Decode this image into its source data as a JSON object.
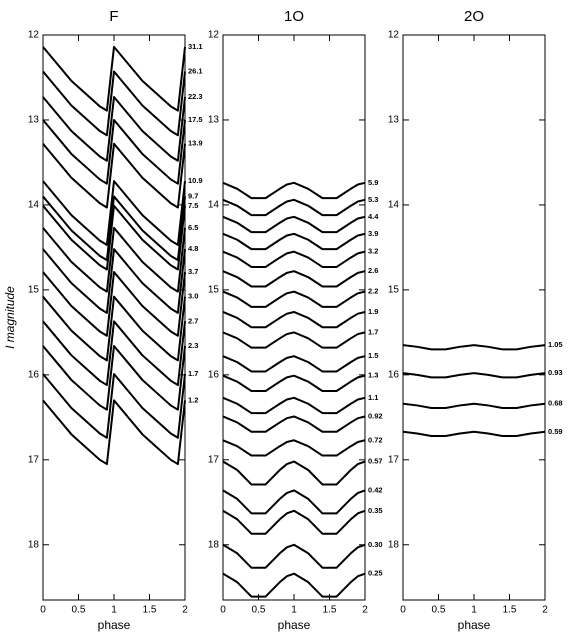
{
  "chart_data": [
    {
      "type": "line",
      "title": "F",
      "xlabel": "phase",
      "ylabel": "I  magnitude",
      "x": [
        0,
        0.2,
        0.4,
        0.6,
        0.8,
        0.9,
        1,
        1.2,
        1.4,
        1.6,
        1.8,
        1.9,
        2
      ],
      "xlim": [
        0,
        2
      ],
      "xticks": [
        0,
        0.5,
        1,
        1.5,
        2
      ],
      "ylim": [
        12,
        18.65
      ],
      "yticks": [
        12,
        13,
        14,
        15,
        16,
        17,
        18
      ],
      "y_inverted": true,
      "series": [
        {
          "name": "31.1",
          "color": "#000000",
          "values": [
            12.14,
            12.34,
            12.54,
            12.69,
            12.84,
            12.89,
            12.14,
            12.34,
            12.54,
            12.69,
            12.84,
            12.89,
            12.14
          ]
        },
        {
          "name": "26.1",
          "color": "#000000",
          "values": [
            12.43,
            12.63,
            12.83,
            12.98,
            13.13,
            13.18,
            12.43,
            12.63,
            12.83,
            12.98,
            13.13,
            13.18,
            12.43
          ]
        },
        {
          "name": "22.3",
          "color": "#000000",
          "values": [
            12.73,
            12.93,
            13.13,
            13.28,
            13.43,
            13.48,
            12.73,
            12.93,
            13.13,
            13.28,
            13.43,
            13.48,
            12.73
          ]
        },
        {
          "name": "17.5",
          "color": "#000000",
          "values": [
            13.0,
            13.2,
            13.4,
            13.55,
            13.7,
            13.75,
            13.0,
            13.2,
            13.4,
            13.55,
            13.7,
            13.75,
            13.0
          ]
        },
        {
          "name": "13.9",
          "color": "#000000",
          "values": [
            13.28,
            13.48,
            13.68,
            13.83,
            13.98,
            14.03,
            13.28,
            13.48,
            13.68,
            13.83,
            13.98,
            14.03,
            13.28
          ]
        },
        {
          "name": "10.9",
          "color": "#000000",
          "values": [
            13.72,
            13.92,
            14.12,
            14.27,
            14.42,
            14.47,
            13.72,
            13.92,
            14.12,
            14.27,
            14.42,
            14.47,
            13.72
          ]
        },
        {
          "name": "9.7",
          "color": "#000000",
          "values": [
            13.9,
            14.1,
            14.3,
            14.45,
            14.6,
            14.65,
            13.9,
            14.1,
            14.3,
            14.45,
            14.6,
            14.65,
            13.9
          ]
        },
        {
          "name": "7.5",
          "color": "#000000",
          "values": [
            14.01,
            14.21,
            14.41,
            14.56,
            14.71,
            14.76,
            14.01,
            14.21,
            14.41,
            14.56,
            14.71,
            14.76,
            14.01
          ]
        },
        {
          "name": "6.5",
          "color": "#000000",
          "values": [
            14.27,
            14.47,
            14.67,
            14.82,
            14.97,
            15.02,
            14.27,
            14.47,
            14.67,
            14.82,
            14.97,
            15.02,
            14.27
          ]
        },
        {
          "name": "4.8",
          "color": "#000000",
          "values": [
            14.52,
            14.72,
            14.92,
            15.07,
            15.22,
            15.27,
            14.52,
            14.72,
            14.92,
            15.07,
            15.22,
            15.27,
            14.52
          ]
        },
        {
          "name": "3.7",
          "color": "#000000",
          "values": [
            14.79,
            14.99,
            15.19,
            15.34,
            15.49,
            15.54,
            14.79,
            14.99,
            15.19,
            15.34,
            15.49,
            15.54,
            14.79
          ]
        },
        {
          "name": "3.0",
          "color": "#000000",
          "values": [
            15.08,
            15.28,
            15.48,
            15.63,
            15.78,
            15.83,
            15.08,
            15.28,
            15.48,
            15.63,
            15.78,
            15.83,
            15.08
          ]
        },
        {
          "name": "2.7",
          "color": "#000000",
          "values": [
            15.37,
            15.57,
            15.77,
            15.92,
            16.07,
            16.12,
            15.37,
            15.57,
            15.77,
            15.92,
            16.07,
            16.12,
            15.37
          ]
        },
        {
          "name": "2.3",
          "color": "#000000",
          "values": [
            15.66,
            15.86,
            16.06,
            16.21,
            16.36,
            16.41,
            15.66,
            15.86,
            16.06,
            16.21,
            16.36,
            16.41,
            15.66
          ]
        },
        {
          "name": "1.7",
          "color": "#000000",
          "values": [
            15.99,
            16.19,
            16.39,
            16.54,
            16.69,
            16.74,
            15.99,
            16.19,
            16.39,
            16.54,
            16.69,
            16.74,
            15.99
          ]
        },
        {
          "name": "1.2",
          "color": "#000000",
          "values": [
            16.3,
            16.5,
            16.7,
            16.85,
            17.0,
            17.05,
            16.3,
            16.5,
            16.7,
            16.85,
            17.0,
            17.05,
            16.3
          ]
        }
      ]
    },
    {
      "type": "line",
      "title": "1O",
      "xlabel": "phase",
      "x": [
        0,
        0.2,
        0.4,
        0.6,
        0.8,
        0.9,
        1,
        1.2,
        1.4,
        1.6,
        1.8,
        1.9,
        2
      ],
      "xlim": [
        0,
        2
      ],
      "xticks": [
        0,
        0.5,
        1,
        1.5,
        2
      ],
      "ylim": [
        12,
        18.65
      ],
      "yticks": [
        12,
        13,
        14,
        15,
        16,
        17,
        18
      ],
      "y_inverted": true,
      "series": [
        {
          "name": "5.9",
          "color": "#000000",
          "values": [
            13.74,
            13.81,
            13.92,
            13.92,
            13.81,
            13.76,
            13.74,
            13.81,
            13.92,
            13.92,
            13.81,
            13.76,
            13.74
          ]
        },
        {
          "name": "5.3",
          "color": "#000000",
          "values": [
            13.94,
            14.01,
            14.12,
            14.12,
            14.01,
            13.96,
            13.94,
            14.01,
            14.12,
            14.12,
            14.01,
            13.96,
            13.94
          ]
        },
        {
          "name": "4.4",
          "color": "#000000",
          "values": [
            14.14,
            14.21,
            14.32,
            14.32,
            14.21,
            14.16,
            14.14,
            14.21,
            14.32,
            14.32,
            14.21,
            14.16,
            14.14
          ]
        },
        {
          "name": "3.9",
          "color": "#000000",
          "values": [
            14.34,
            14.41,
            14.52,
            14.52,
            14.41,
            14.36,
            14.34,
            14.41,
            14.52,
            14.52,
            14.41,
            14.36,
            14.34
          ]
        },
        {
          "name": "3.2",
          "color": "#000000",
          "values": [
            14.55,
            14.62,
            14.73,
            14.73,
            14.62,
            14.57,
            14.55,
            14.62,
            14.73,
            14.73,
            14.62,
            14.57,
            14.55
          ]
        },
        {
          "name": "2.6",
          "color": "#000000",
          "values": [
            14.78,
            14.85,
            14.96,
            14.96,
            14.85,
            14.8,
            14.78,
            14.85,
            14.96,
            14.96,
            14.85,
            14.8,
            14.78
          ]
        },
        {
          "name": "2.2",
          "color": "#000000",
          "values": [
            15.02,
            15.09,
            15.2,
            15.2,
            15.09,
            15.04,
            15.02,
            15.09,
            15.2,
            15.2,
            15.09,
            15.04,
            15.02
          ]
        },
        {
          "name": "1.9",
          "color": "#000000",
          "values": [
            15.26,
            15.33,
            15.44,
            15.44,
            15.33,
            15.28,
            15.26,
            15.33,
            15.44,
            15.44,
            15.33,
            15.28,
            15.26
          ]
        },
        {
          "name": "1.7",
          "color": "#000000",
          "values": [
            15.5,
            15.57,
            15.68,
            15.68,
            15.57,
            15.52,
            15.5,
            15.57,
            15.68,
            15.68,
            15.57,
            15.52,
            15.5
          ]
        },
        {
          "name": "1.5",
          "color": "#000000",
          "values": [
            15.78,
            15.85,
            15.96,
            15.96,
            15.85,
            15.8,
            15.78,
            15.85,
            15.96,
            15.96,
            15.85,
            15.8,
            15.78
          ]
        },
        {
          "name": "1.3",
          "color": "#000000",
          "values": [
            16.01,
            16.08,
            16.19,
            16.19,
            16.08,
            16.03,
            16.01,
            16.08,
            16.19,
            16.19,
            16.08,
            16.03,
            16.01
          ]
        },
        {
          "name": "1.1",
          "color": "#000000",
          "values": [
            16.27,
            16.34,
            16.45,
            16.45,
            16.34,
            16.29,
            16.27,
            16.34,
            16.45,
            16.45,
            16.34,
            16.29,
            16.27
          ]
        },
        {
          "name": "0.92",
          "color": "#000000",
          "values": [
            16.49,
            16.56,
            16.67,
            16.67,
            16.56,
            16.51,
            16.49,
            16.56,
            16.67,
            16.67,
            16.56,
            16.51,
            16.49
          ]
        },
        {
          "name": "0.72",
          "color": "#000000",
          "values": [
            16.77,
            16.84,
            16.95,
            16.95,
            16.84,
            16.79,
            16.77,
            16.84,
            16.95,
            16.95,
            16.84,
            16.79,
            16.77
          ]
        },
        {
          "name": "0.57",
          "color": "#000000",
          "values": [
            17.02,
            17.12,
            17.29,
            17.29,
            17.12,
            17.05,
            17.02,
            17.12,
            17.29,
            17.29,
            17.12,
            17.05,
            17.02
          ]
        },
        {
          "name": "0.42",
          "color": "#000000",
          "values": [
            17.36,
            17.46,
            17.63,
            17.63,
            17.46,
            17.39,
            17.36,
            17.46,
            17.63,
            17.63,
            17.46,
            17.39,
            17.36
          ]
        },
        {
          "name": "0.35",
          "color": "#000000",
          "values": [
            17.6,
            17.7,
            17.87,
            17.87,
            17.7,
            17.63,
            17.6,
            17.7,
            17.87,
            17.87,
            17.7,
            17.63,
            17.6
          ]
        },
        {
          "name": "0.30",
          "color": "#000000",
          "values": [
            18.0,
            18.1,
            18.27,
            18.27,
            18.1,
            18.03,
            18.0,
            18.1,
            18.27,
            18.27,
            18.1,
            18.03,
            18.0
          ]
        },
        {
          "name": "0.25",
          "color": "#000000",
          "values": [
            18.34,
            18.44,
            18.61,
            18.61,
            18.44,
            18.37,
            18.34,
            18.44,
            18.61,
            18.61,
            18.44,
            18.37,
            18.34
          ]
        }
      ]
    },
    {
      "type": "line",
      "title": "2O",
      "xlabel": "phase",
      "x": [
        0,
        0.2,
        0.4,
        0.6,
        0.8,
        0.9,
        1,
        1.2,
        1.4,
        1.6,
        1.8,
        1.9,
        2
      ],
      "xlim": [
        0,
        2
      ],
      "xticks": [
        0,
        0.5,
        1,
        1.5,
        2
      ],
      "ylim": [
        12,
        18.65
      ],
      "yticks": [
        12,
        13,
        14,
        15,
        16,
        17,
        18
      ],
      "y_inverted": true,
      "series": [
        {
          "name": "1.05",
          "color": "#000000",
          "values": [
            15.65,
            15.67,
            15.7,
            15.7,
            15.67,
            15.66,
            15.65,
            15.67,
            15.7,
            15.7,
            15.67,
            15.66,
            15.65
          ]
        },
        {
          "name": "0.93",
          "color": "#000000",
          "values": [
            15.98,
            16.0,
            16.03,
            16.03,
            16.0,
            15.99,
            15.98,
            16.0,
            16.03,
            16.03,
            16.0,
            15.99,
            15.98
          ]
        },
        {
          "name": "0.68",
          "color": "#000000",
          "values": [
            16.34,
            16.36,
            16.39,
            16.39,
            16.36,
            16.35,
            16.34,
            16.36,
            16.39,
            16.39,
            16.36,
            16.35,
            16.34
          ]
        },
        {
          "name": "0.59",
          "color": "#000000",
          "values": [
            16.67,
            16.69,
            16.72,
            16.72,
            16.69,
            16.68,
            16.67,
            16.69,
            16.72,
            16.72,
            16.69,
            16.68,
            16.67
          ]
        }
      ]
    }
  ]
}
